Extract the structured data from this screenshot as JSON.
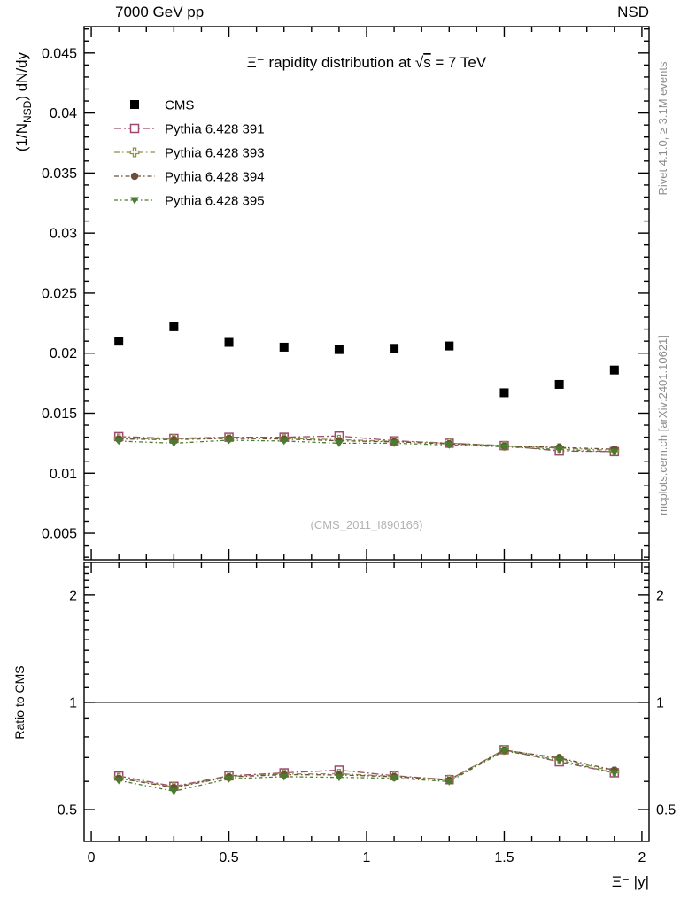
{
  "page": {
    "background": "#ffffff"
  },
  "texts": {
    "header_left": "7000 GeV pp",
    "header_right": "NSD",
    "title_parts": [
      "Ξ⁻ rapidity distribution at √",
      "s",
      " = 7 TeV"
    ],
    "watermark": "(CMS_2011_I890166)",
    "rivet_side": "Rivet 4.1.0, ≥ 3.1M events",
    "mcplots_side": "mcplots.cern.ch [arXiv:2401.10621]",
    "ylabel_parts": [
      "(1/N",
      "NSD",
      ") dN/dy"
    ],
    "ratio_label": "Ratio to CMS",
    "xlabel": "Ξ⁻ |y|"
  },
  "chart_data": {
    "type": "scatter",
    "title": "Ξ⁻ rapidity distribution at √s = 7 TeV",
    "xlabel": "Ξ⁻ |y|",
    "ylabel": "(1/N_NSD) dN/dy",
    "ratio_ylabel": "Ratio to CMS",
    "legend_position": "top-left-inside",
    "grid": false,
    "x": [
      0.1,
      0.3,
      0.5,
      0.7,
      0.9,
      1.1,
      1.3,
      1.5,
      1.7,
      1.9
    ],
    "series": [
      {
        "name": "cms",
        "label": "CMS",
        "marker": "square-filled",
        "color": "#000000",
        "dash": "",
        "values": [
          0.021,
          0.0222,
          0.0209,
          0.0205,
          0.0203,
          0.0204,
          0.0206,
          0.0167,
          0.0174,
          0.0186
        ]
      },
      {
        "name": "pythia-6428-391",
        "label": "Pythia 6.428 391",
        "marker": "square-open",
        "color": "#9c4a6e",
        "dash": "8 3 2 3",
        "values": [
          0.01305,
          0.0129,
          0.013,
          0.013,
          0.0131,
          0.0127,
          0.0125,
          0.0123,
          0.01185,
          0.0118
        ]
      },
      {
        "name": "pythia-6428-393",
        "label": "Pythia 6.428 393",
        "marker": "cross-open",
        "color": "#8f8f4b",
        "dash": "6 3 1.5 3",
        "values": [
          0.0129,
          0.01285,
          0.01295,
          0.0129,
          0.0128,
          0.01265,
          0.0125,
          0.01228,
          0.0121,
          0.0119
        ]
      },
      {
        "name": "pythia-6428-394",
        "label": "Pythia 6.428 394",
        "marker": "circle-filled",
        "color": "#6f4e37",
        "dash": "5 3 1.5 3",
        "values": [
          0.01285,
          0.0128,
          0.0129,
          0.01285,
          0.0127,
          0.01262,
          0.01245,
          0.01226,
          0.01215,
          0.012
        ]
      },
      {
        "name": "pythia-6428-395",
        "label": "Pythia 6.428 395",
        "marker": "triangle-down-filled",
        "color": "#4a7c2f",
        "dash": "4 3 1.5 3",
        "values": [
          0.01268,
          0.0125,
          0.01275,
          0.01268,
          0.0125,
          0.0125,
          0.01235,
          0.0122,
          0.01198,
          0.01178
        ]
      }
    ],
    "x_axis": {
      "min": -0.026,
      "max": 2.026,
      "minor_step": 0.1,
      "ticks": [
        {
          "v": 0,
          "label": "0"
        },
        {
          "v": 0.5,
          "label": "0.5"
        },
        {
          "v": 1,
          "label": "1"
        },
        {
          "v": 1.5,
          "label": "1.5"
        },
        {
          "v": 2,
          "label": "2"
        }
      ]
    },
    "top_axis": {
      "min": 0.00279,
      "max": 0.0472,
      "minor_step": 0.001,
      "ticks": [
        {
          "v": 0.005,
          "label": "0.005"
        },
        {
          "v": 0.01,
          "label": "0.01"
        },
        {
          "v": 0.015,
          "label": "0.015"
        },
        {
          "v": 0.02,
          "label": "0.02"
        },
        {
          "v": 0.025,
          "label": "0.025"
        },
        {
          "v": 0.03,
          "label": "0.03"
        },
        {
          "v": 0.035,
          "label": "0.035"
        },
        {
          "v": 0.04,
          "label": "0.04"
        },
        {
          "v": 0.045,
          "label": "0.045"
        }
      ]
    },
    "ratio_axis": {
      "scale": "log",
      "min": 0.407,
      "max": 2.47,
      "reference": 1,
      "ticks": [
        {
          "v": 0.5,
          "label": "0.5"
        },
        {
          "v": 1,
          "label": "1"
        },
        {
          "v": 2,
          "label": "2"
        }
      ]
    }
  }
}
